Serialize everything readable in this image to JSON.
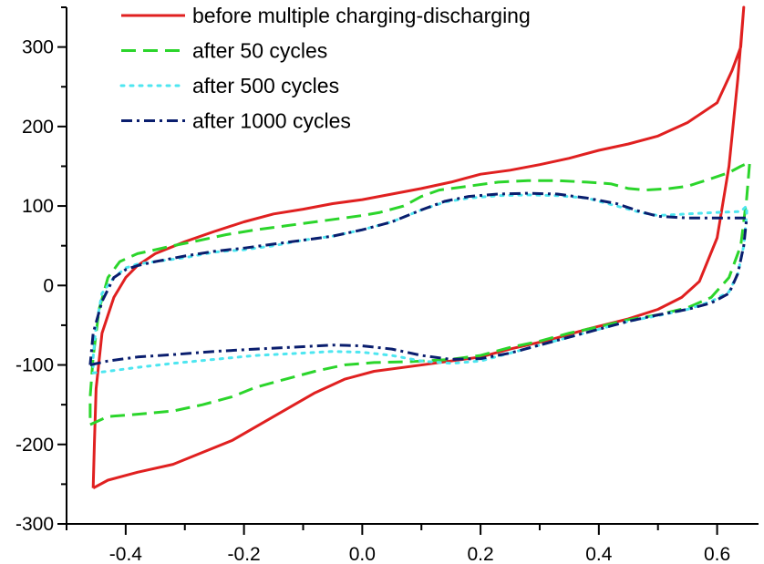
{
  "chart_data": {
    "type": "line",
    "title": "",
    "xlabel": "",
    "ylabel": "",
    "xlim": [
      -0.5,
      0.67
    ],
    "ylim": [
      -300,
      350
    ],
    "x_ticks": [
      -0.4,
      -0.2,
      0.0,
      0.2,
      0.4,
      0.6
    ],
    "x_tick_labels": [
      "-0.4",
      "-0.2",
      "0.0",
      "0.2",
      "0.4",
      "0.6"
    ],
    "y_ticks": [
      -300,
      -200,
      -100,
      0,
      100,
      200,
      300
    ],
    "y_tick_labels": [
      "-300",
      "-200",
      "-100",
      "0",
      "100",
      "200",
      "300"
    ],
    "grid": false,
    "legend_position": "top-left",
    "series": [
      {
        "name": "before multiple charging-discharging",
        "color": "#e02020",
        "dash": "solid",
        "points": [
          [
            -0.455,
            -255
          ],
          [
            -0.43,
            -245
          ],
          [
            -0.38,
            -235
          ],
          [
            -0.32,
            -225
          ],
          [
            -0.28,
            -213
          ],
          [
            -0.22,
            -195
          ],
          [
            -0.15,
            -165
          ],
          [
            -0.08,
            -135
          ],
          [
            -0.03,
            -118
          ],
          [
            0.02,
            -108
          ],
          [
            0.08,
            -102
          ],
          [
            0.15,
            -95
          ],
          [
            0.2,
            -90
          ],
          [
            0.25,
            -80
          ],
          [
            0.32,
            -68
          ],
          [
            0.38,
            -55
          ],
          [
            0.45,
            -42
          ],
          [
            0.5,
            -30
          ],
          [
            0.54,
            -15
          ],
          [
            0.57,
            5
          ],
          [
            0.6,
            60
          ],
          [
            0.62,
            150
          ],
          [
            0.635,
            260
          ],
          [
            0.645,
            350
          ],
          [
            0.64,
            300
          ],
          [
            0.625,
            270
          ],
          [
            0.6,
            230
          ],
          [
            0.55,
            205
          ],
          [
            0.5,
            188
          ],
          [
            0.45,
            178
          ],
          [
            0.4,
            170
          ],
          [
            0.35,
            160
          ],
          [
            0.3,
            152
          ],
          [
            0.25,
            145
          ],
          [
            0.2,
            140
          ],
          [
            0.15,
            130
          ],
          [
            0.1,
            122
          ],
          [
            0.05,
            115
          ],
          [
            0.0,
            108
          ],
          [
            -0.05,
            103
          ],
          [
            -0.1,
            96
          ],
          [
            -0.15,
            90
          ],
          [
            -0.2,
            80
          ],
          [
            -0.25,
            68
          ],
          [
            -0.3,
            55
          ],
          [
            -0.35,
            40
          ],
          [
            -0.38,
            25
          ],
          [
            -0.4,
            10
          ],
          [
            -0.42,
            -15
          ],
          [
            -0.44,
            -60
          ],
          [
            -0.45,
            -130
          ],
          [
            -0.453,
            -200
          ],
          [
            -0.455,
            -255
          ]
        ]
      },
      {
        "name": "after 50 cycles",
        "color": "#2bd52b",
        "dash": "dashed",
        "points": [
          [
            -0.46,
            -175
          ],
          [
            -0.43,
            -165
          ],
          [
            -0.38,
            -162
          ],
          [
            -0.32,
            -158
          ],
          [
            -0.27,
            -150
          ],
          [
            -0.22,
            -140
          ],
          [
            -0.18,
            -128
          ],
          [
            -0.13,
            -118
          ],
          [
            -0.08,
            -108
          ],
          [
            -0.03,
            -100
          ],
          [
            0.02,
            -97
          ],
          [
            0.08,
            -96
          ],
          [
            0.15,
            -93
          ],
          [
            0.2,
            -88
          ],
          [
            0.25,
            -78
          ],
          [
            0.3,
            -70
          ],
          [
            0.35,
            -60
          ],
          [
            0.4,
            -52
          ],
          [
            0.45,
            -43
          ],
          [
            0.5,
            -37
          ],
          [
            0.55,
            -28
          ],
          [
            0.59,
            -15
          ],
          [
            0.62,
            10
          ],
          [
            0.64,
            50
          ],
          [
            0.65,
            110
          ],
          [
            0.655,
            155
          ],
          [
            0.64,
            150
          ],
          [
            0.62,
            142
          ],
          [
            0.58,
            132
          ],
          [
            0.55,
            125
          ],
          [
            0.52,
            122
          ],
          [
            0.48,
            120
          ],
          [
            0.45,
            122
          ],
          [
            0.42,
            128
          ],
          [
            0.38,
            130
          ],
          [
            0.33,
            132
          ],
          [
            0.28,
            132
          ],
          [
            0.23,
            130
          ],
          [
            0.18,
            125
          ],
          [
            0.13,
            120
          ],
          [
            0.1,
            112
          ],
          [
            0.07,
            100
          ],
          [
            0.03,
            92
          ],
          [
            0.0,
            88
          ],
          [
            -0.03,
            85
          ],
          [
            -0.08,
            80
          ],
          [
            -0.13,
            75
          ],
          [
            -0.18,
            70
          ],
          [
            -0.23,
            64
          ],
          [
            -0.28,
            56
          ],
          [
            -0.32,
            50
          ],
          [
            -0.35,
            45
          ],
          [
            -0.38,
            40
          ],
          [
            -0.41,
            30
          ],
          [
            -0.43,
            10
          ],
          [
            -0.445,
            -30
          ],
          [
            -0.455,
            -90
          ],
          [
            -0.46,
            -140
          ],
          [
            -0.46,
            -175
          ]
        ]
      },
      {
        "name": "after 500 cycles",
        "color": "#4ee6f0",
        "dash": "dotted",
        "points": [
          [
            -0.455,
            -110
          ],
          [
            -0.43,
            -108
          ],
          [
            -0.38,
            -103
          ],
          [
            -0.32,
            -98
          ],
          [
            -0.25,
            -93
          ],
          [
            -0.18,
            -88
          ],
          [
            -0.1,
            -85
          ],
          [
            -0.05,
            -83
          ],
          [
            0.0,
            -84
          ],
          [
            0.05,
            -88
          ],
          [
            0.1,
            -95
          ],
          [
            0.15,
            -98
          ],
          [
            0.2,
            -95
          ],
          [
            0.25,
            -85
          ],
          [
            0.3,
            -75
          ],
          [
            0.35,
            -65
          ],
          [
            0.4,
            -55
          ],
          [
            0.45,
            -45
          ],
          [
            0.5,
            -38
          ],
          [
            0.55,
            -30
          ],
          [
            0.59,
            -20
          ],
          [
            0.62,
            -8
          ],
          [
            0.635,
            15
          ],
          [
            0.645,
            50
          ],
          [
            0.65,
            90
          ],
          [
            0.65,
            100
          ],
          [
            0.64,
            93
          ],
          [
            0.6,
            92
          ],
          [
            0.55,
            90
          ],
          [
            0.5,
            88
          ],
          [
            0.47,
            92
          ],
          [
            0.43,
            100
          ],
          [
            0.38,
            110
          ],
          [
            0.33,
            113
          ],
          [
            0.28,
            114
          ],
          [
            0.23,
            113
          ],
          [
            0.18,
            110
          ],
          [
            0.14,
            105
          ],
          [
            0.1,
            95
          ],
          [
            0.05,
            80
          ],
          [
            0.0,
            70
          ],
          [
            -0.05,
            62
          ],
          [
            -0.1,
            57
          ],
          [
            -0.15,
            50
          ],
          [
            -0.2,
            45
          ],
          [
            -0.25,
            42
          ],
          [
            -0.3,
            35
          ],
          [
            -0.35,
            30
          ],
          [
            -0.38,
            27
          ],
          [
            -0.4,
            22
          ],
          [
            -0.42,
            10
          ],
          [
            -0.44,
            -10
          ],
          [
            -0.45,
            -50
          ],
          [
            -0.455,
            -90
          ],
          [
            -0.455,
            -110
          ]
        ]
      },
      {
        "name": "after 1000 cycles",
        "color": "#0a1e6e",
        "dash": "dashdot",
        "points": [
          [
            -0.46,
            -100
          ],
          [
            -0.43,
            -95
          ],
          [
            -0.38,
            -90
          ],
          [
            -0.32,
            -87
          ],
          [
            -0.25,
            -83
          ],
          [
            -0.18,
            -80
          ],
          [
            -0.1,
            -77
          ],
          [
            -0.05,
            -75
          ],
          [
            0.0,
            -76
          ],
          [
            0.05,
            -80
          ],
          [
            0.1,
            -88
          ],
          [
            0.15,
            -93
          ],
          [
            0.2,
            -92
          ],
          [
            0.25,
            -85
          ],
          [
            0.3,
            -75
          ],
          [
            0.35,
            -65
          ],
          [
            0.4,
            -55
          ],
          [
            0.45,
            -45
          ],
          [
            0.5,
            -37
          ],
          [
            0.55,
            -30
          ],
          [
            0.59,
            -22
          ],
          [
            0.62,
            -10
          ],
          [
            0.635,
            15
          ],
          [
            0.645,
            50
          ],
          [
            0.65,
            85
          ],
          [
            0.64,
            85
          ],
          [
            0.6,
            85
          ],
          [
            0.55,
            85
          ],
          [
            0.5,
            87
          ],
          [
            0.47,
            93
          ],
          [
            0.43,
            103
          ],
          [
            0.38,
            110
          ],
          [
            0.33,
            115
          ],
          [
            0.28,
            116
          ],
          [
            0.23,
            115
          ],
          [
            0.18,
            112
          ],
          [
            0.14,
            106
          ],
          [
            0.1,
            95
          ],
          [
            0.05,
            80
          ],
          [
            0.0,
            70
          ],
          [
            -0.05,
            62
          ],
          [
            -0.1,
            57
          ],
          [
            -0.15,
            52
          ],
          [
            -0.2,
            47
          ],
          [
            -0.25,
            43
          ],
          [
            -0.3,
            37
          ],
          [
            -0.35,
            30
          ],
          [
            -0.38,
            25
          ],
          [
            -0.4,
            20
          ],
          [
            -0.42,
            10
          ],
          [
            -0.44,
            -20
          ],
          [
            -0.455,
            -60
          ],
          [
            -0.46,
            -100
          ]
        ]
      }
    ]
  }
}
